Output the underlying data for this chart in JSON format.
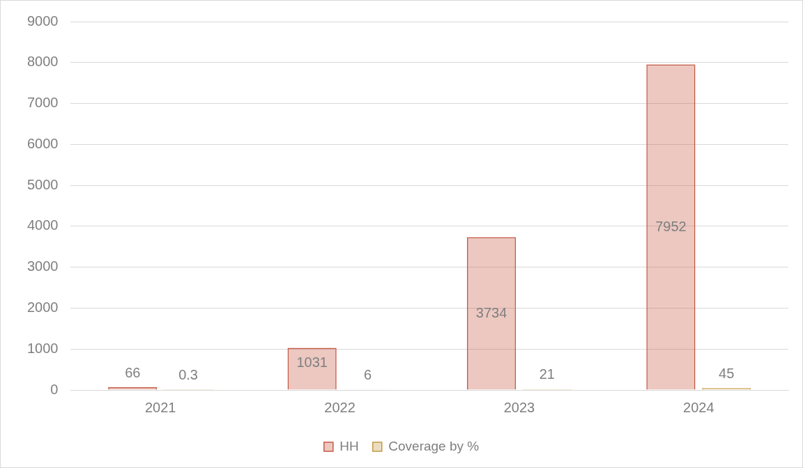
{
  "chart_data": {
    "type": "bar",
    "categories": [
      "2021",
      "2022",
      "2023",
      "2024"
    ],
    "series": [
      {
        "name": "HH",
        "color": "#c55a44",
        "values": [
          66,
          1031,
          3734,
          7952
        ]
      },
      {
        "name": "Coverage by %",
        "color": "#c49a45",
        "values": [
          0.3,
          6,
          21,
          45
        ]
      }
    ],
    "ylim": [
      0,
      9000
    ],
    "yticks": [
      0,
      1000,
      2000,
      3000,
      4000,
      5000,
      6000,
      7000,
      8000,
      9000
    ],
    "grid": "y",
    "legend": "bottom",
    "data_labels": true
  }
}
